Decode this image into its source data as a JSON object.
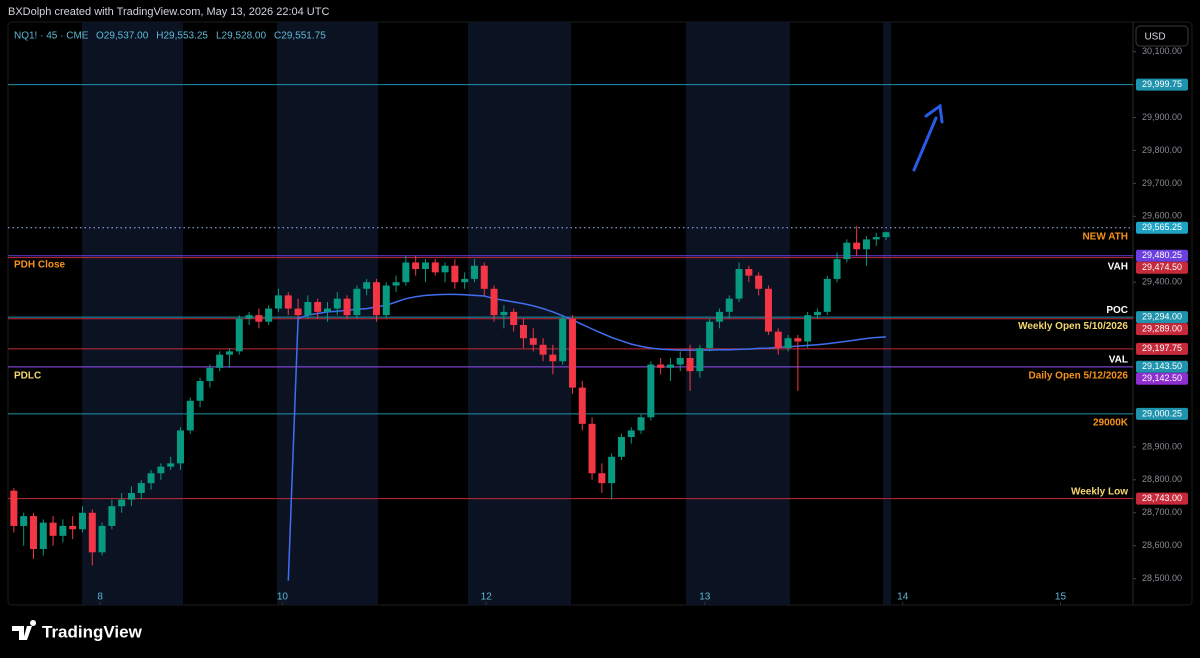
{
  "chart_data": {
    "type": "candlestick",
    "title": "BXDolph created with TradingView.com, May 13, 2026 22:04 UTC",
    "symbol": "NQ1! · 45 · CME",
    "ohlc_labels": [
      "O29,537.00",
      "H29,553.25",
      "L29,528.00",
      "C29,551.75"
    ],
    "currency": "USD",
    "brand": "TradingView",
    "up_color": "#089981",
    "down_color": "#f23645",
    "xlim": [
      -0.6,
      114.2
    ],
    "xticks": [
      {
        "value": 8.8,
        "label": "8"
      },
      {
        "value": 27.4,
        "label": "10"
      },
      {
        "value": 48.2,
        "label": "12"
      },
      {
        "value": 70.5,
        "label": "13"
      },
      {
        "value": 90.7,
        "label": "14"
      },
      {
        "value": 106.8,
        "label": "15"
      }
    ],
    "ylim": [
      28420,
      30190
    ],
    "yticks": [
      {
        "value": 30100,
        "label": "30,100.00"
      },
      {
        "value": 29900,
        "label": "29,900.00"
      },
      {
        "value": 29800,
        "label": "29,800.00"
      },
      {
        "value": 29700,
        "label": "29,700.00"
      },
      {
        "value": 29600,
        "label": "29,600.00"
      },
      {
        "value": 29400,
        "label": "29,400.00"
      },
      {
        "value": 28900,
        "label": "28,900.00"
      },
      {
        "value": 28800,
        "label": "28,800.00"
      },
      {
        "value": 28700,
        "label": "28,700.00"
      },
      {
        "value": 28600,
        "label": "28,600.00"
      },
      {
        "value": 28500,
        "label": "28,500.00"
      }
    ],
    "ohlc": [
      [
        28767,
        28775,
        28640,
        28660
      ],
      [
        28660,
        28700,
        28600,
        28690
      ],
      [
        28690,
        28700,
        28560,
        28590
      ],
      [
        28590,
        28680,
        28570,
        28670
      ],
      [
        28670,
        28690,
        28600,
        28630
      ],
      [
        28630,
        28680,
        28610,
        28660
      ],
      [
        28660,
        28690,
        28620,
        28650
      ],
      [
        28650,
        28720,
        28640,
        28700
      ],
      [
        28700,
        28710,
        28540,
        28580
      ],
      [
        28580,
        28670,
        28570,
        28660
      ],
      [
        28660,
        28740,
        28650,
        28720
      ],
      [
        28720,
        28760,
        28700,
        28740
      ],
      [
        28740,
        28780,
        28720,
        28760
      ],
      [
        28760,
        28800,
        28740,
        28790
      ],
      [
        28790,
        28830,
        28770,
        28820
      ],
      [
        28820,
        28850,
        28800,
        28840
      ],
      [
        28840,
        28870,
        28830,
        28850
      ],
      [
        28850,
        28960,
        28830,
        28950
      ],
      [
        28950,
        29050,
        28940,
        29040
      ],
      [
        29040,
        29110,
        29020,
        29100
      ],
      [
        29100,
        29150,
        29080,
        29140
      ],
      [
        29140,
        29190,
        29130,
        29180
      ],
      [
        29180,
        29200,
        29140,
        29190
      ],
      [
        29190,
        29300,
        29180,
        29290
      ],
      [
        29290,
        29310,
        29270,
        29300
      ],
      [
        29300,
        29320,
        29260,
        29280
      ],
      [
        29280,
        29330,
        29270,
        29320
      ],
      [
        29320,
        29380,
        29310,
        29360
      ],
      [
        29360,
        29370,
        29300,
        29320
      ],
      [
        29320,
        29350,
        29290,
        29300
      ],
      [
        29300,
        29360,
        29290,
        29340
      ],
      [
        29340,
        29350,
        29290,
        29310
      ],
      [
        29310,
        29340,
        29280,
        29320
      ],
      [
        29320,
        29370,
        29300,
        29350
      ],
      [
        29350,
        29360,
        29290,
        29300
      ],
      [
        29300,
        29390,
        29290,
        29380
      ],
      [
        29380,
        29410,
        29360,
        29400
      ],
      [
        29400,
        29410,
        29280,
        29300
      ],
      [
        29300,
        29400,
        29290,
        29390
      ],
      [
        29390,
        29420,
        29370,
        29400
      ],
      [
        29400,
        29480,
        29390,
        29460
      ],
      [
        29460,
        29480,
        29420,
        29440
      ],
      [
        29440,
        29470,
        29400,
        29460
      ],
      [
        29460,
        29470,
        29420,
        29430
      ],
      [
        29430,
        29460,
        29400,
        29450
      ],
      [
        29450,
        29470,
        29380,
        29400
      ],
      [
        29400,
        29430,
        29380,
        29410
      ],
      [
        29410,
        29470,
        29400,
        29450
      ],
      [
        29450,
        29460,
        29360,
        29380
      ],
      [
        29380,
        29390,
        29280,
        29300
      ],
      [
        29300,
        29330,
        29260,
        29310
      ],
      [
        29310,
        29320,
        29250,
        29270
      ],
      [
        29270,
        29290,
        29200,
        29230
      ],
      [
        29230,
        29260,
        29190,
        29210
      ],
      [
        29210,
        29230,
        29160,
        29180
      ],
      [
        29180,
        29210,
        29120,
        29160
      ],
      [
        29160,
        29300,
        29150,
        29290
      ],
      [
        29290,
        29300,
        29060,
        29080
      ],
      [
        29080,
        29100,
        28950,
        28970
      ],
      [
        28970,
        28990,
        28800,
        28820
      ],
      [
        28820,
        28850,
        28760,
        28790
      ],
      [
        28790,
        28880,
        28740,
        28870
      ],
      [
        28870,
        28940,
        28860,
        28930
      ],
      [
        28930,
        28960,
        28910,
        28950
      ],
      [
        28950,
        29000,
        28940,
        28990
      ],
      [
        28990,
        29160,
        28980,
        29150
      ],
      [
        29150,
        29170,
        29120,
        29140
      ],
      [
        29140,
        29170,
        29100,
        29150
      ],
      [
        29150,
        29190,
        29130,
        29170
      ],
      [
        29170,
        29210,
        29070,
        29130
      ],
      [
        29130,
        29210,
        29110,
        29200
      ],
      [
        29200,
        29290,
        29190,
        29280
      ],
      [
        29280,
        29320,
        29260,
        29310
      ],
      [
        29310,
        29360,
        29290,
        29350
      ],
      [
        29350,
        29460,
        29340,
        29440
      ],
      [
        29440,
        29450,
        29400,
        29420
      ],
      [
        29420,
        29430,
        29360,
        29380
      ],
      [
        29380,
        29390,
        29240,
        29250
      ],
      [
        29250,
        29260,
        29180,
        29200
      ],
      [
        29200,
        29240,
        29190,
        29230
      ],
      [
        29230,
        29240,
        29070,
        29220
      ],
      [
        29220,
        29310,
        29200,
        29300
      ],
      [
        29300,
        29320,
        29290,
        29310
      ],
      [
        29310,
        29420,
        29300,
        29410
      ],
      [
        29410,
        29490,
        29400,
        29470
      ],
      [
        29470,
        29530,
        29460,
        29520
      ],
      [
        29520,
        29570,
        29480,
        29500
      ],
      [
        29500,
        29540,
        29450,
        29530
      ],
      [
        29530,
        29550,
        29510,
        29537
      ],
      [
        29537,
        29553.25,
        29528,
        29551.75
      ]
    ],
    "ma": {
      "color": "#3f6ff0",
      "values": [
        null,
        null,
        null,
        null,
        null,
        null,
        null,
        null,
        null,
        null,
        null,
        null,
        null,
        null,
        null,
        null,
        null,
        null,
        null,
        null,
        null,
        null,
        null,
        null,
        null,
        null,
        null,
        null,
        28494,
        29290,
        29300,
        29305,
        29310,
        29312,
        29315,
        29318,
        29320,
        29325,
        29330,
        29340,
        29350,
        29356,
        29360,
        29362,
        29363,
        29363,
        29362,
        29360,
        29358,
        29350,
        29345,
        29340,
        29335,
        29328,
        29320,
        29310,
        29298,
        29285,
        29272,
        29258,
        29245,
        29232,
        29222,
        29212,
        29205,
        29200,
        29197,
        29195,
        29194,
        29194,
        29194,
        29194,
        29195,
        29195,
        29196,
        29197,
        29199,
        29200,
        29202,
        29204,
        29206,
        29208,
        29210,
        29213,
        29217,
        29221,
        29225,
        29229,
        29232,
        29234
      ]
    },
    "levels": [
      {
        "value": 29999.75,
        "label": "29,999.75",
        "color": "#1f93ad"
      },
      {
        "value": 29565.25,
        "label": "29,565.25",
        "color": "#1ea3c4",
        "style": "dotted",
        "notes": [
          {
            "text": "NEW ATH",
            "side": "right",
            "position": "below",
            "color": "#f7931a"
          }
        ]
      },
      {
        "value": 29480.25,
        "label": "29,480.25",
        "color": "#6b3fe0",
        "notes": [
          {
            "text": "PDH Close",
            "side": "left",
            "position": "below",
            "color": "#f7931a"
          }
        ]
      },
      {
        "value": 29474.5,
        "label": "29,474.50",
        "color": "#c62a3a",
        "notes": [
          {
            "text": "VAH",
            "side": "right",
            "position": "below",
            "color": "#ffffff"
          }
        ]
      },
      {
        "value": 29294,
        "label": "29,294.00",
        "color": "#1f93ad",
        "notes": [
          {
            "text": "POC",
            "side": "right",
            "position": "above",
            "color": "#ffffff"
          },
          {
            "text": "Weekly Open 5/10/2026",
            "side": "right",
            "position": "below",
            "color": "#f5d76e"
          }
        ]
      },
      {
        "value": 29289,
        "label": "29,289.00",
        "color": "#c62a3a"
      },
      {
        "value": 29197.75,
        "label": "29,197.75",
        "color": "#c62a3a"
      },
      {
        "value": 29143.5,
        "label": "29,143.50",
        "color": "#1f93ad",
        "notes": [
          {
            "text": "VAL",
            "side": "right",
            "position": "above",
            "color": "#ffffff"
          },
          {
            "text": "PDLC",
            "side": "left",
            "position": "below",
            "color": "#f5d76e"
          }
        ]
      },
      {
        "value": 29142.5,
        "label": "29,142.50",
        "color": "#8e2fd0",
        "notes": [
          {
            "text": "Daily Open 5/12/2026",
            "side": "right",
            "position": "below",
            "color": "#f7931a"
          }
        ]
      },
      {
        "value": 29000.25,
        "label": "29,000.25",
        "color": "#1f93ad",
        "notes": [
          {
            "text": "29000K",
            "side": "right",
            "position": "below",
            "color": "#f7931a"
          }
        ]
      },
      {
        "value": 28743,
        "label": "28,743.00",
        "color": "#c62a3a",
        "notes": [
          {
            "text": "Weekly Low",
            "side": "right",
            "position": "above",
            "color": "#f5d76e"
          }
        ]
      }
    ]
  }
}
